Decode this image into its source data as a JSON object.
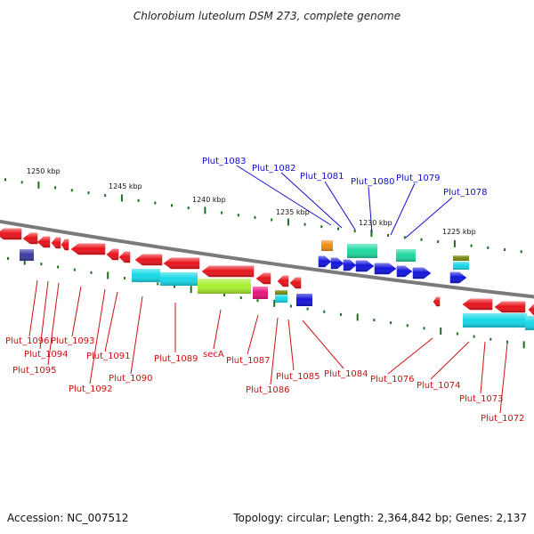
{
  "title": "Chlorobium luteolum DSM 273, complete genome",
  "footer": {
    "accession": "Accession: NC_007512",
    "summary": "Topology: circular; Length: 2,364,842 bp; Genes: 2,137"
  },
  "colors": {
    "backbone": "#7a7a7a",
    "tick": "#1e6e1e",
    "forward_label": "#1010cc",
    "reverse_label": "#cc1010",
    "red_gene": "#e8141c",
    "blue_gene": "#1414dc",
    "cyan_gene": "#18d8e8",
    "teal_gene": "#20d8a0",
    "lime_gene": "#a8f030",
    "magenta_gene": "#e8147c",
    "orange_gene": "#f08c10",
    "olive_gene": "#7a8c10",
    "navy_gene": "#3c3ca0"
  },
  "scale_labels": [
    "1250 kbp",
    "1245 kbp",
    "1240 kbp",
    "1235 kbp",
    "1230 kbp",
    "1225 kbp"
  ],
  "forward_labels": [
    "Plut_1083",
    "Plut_1082",
    "Plut_1081",
    "Plut_1080",
    "Plut_1079",
    "Plut_1078"
  ],
  "reverse_labels": [
    "Plut_1096",
    "Plut_1094",
    "Plut_1095",
    "Plut_1093",
    "Plut_1092",
    "Plut_1091",
    "Plut_1090",
    "Plut_1089",
    "secA",
    "Plut_1087",
    "Plut_1086",
    "Plut_1085",
    "Plut_1084",
    "Plut_1076",
    "Plut_1074",
    "Plut_1073",
    "Plut_1072"
  ]
}
